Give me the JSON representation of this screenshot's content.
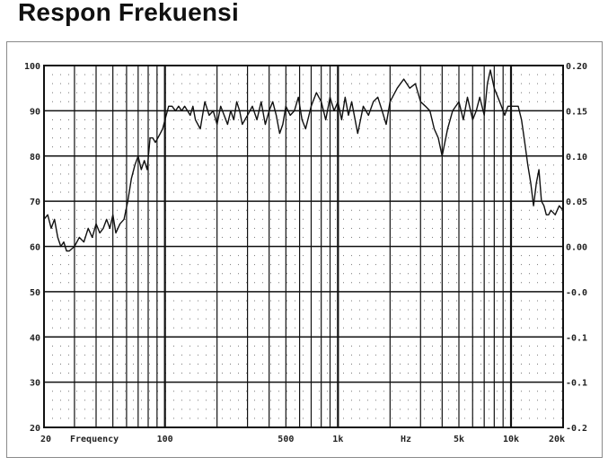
{
  "title": "Respon Frekuensi",
  "chart_data": {
    "type": "line",
    "title": "Respon Frekuensi",
    "xlabel": "Frequency",
    "xunit": "Hz",
    "xscale": "log",
    "xlim": [
      20,
      20000
    ],
    "ylim": [
      20,
      100
    ],
    "y2lim": [
      -0.2,
      0.2
    ],
    "grid": true,
    "x_tick_labels": [
      {
        "value": 20,
        "label": "20"
      },
      {
        "value": 100,
        "label": "100"
      },
      {
        "value": 500,
        "label": "500"
      },
      {
        "value": 1000,
        "label": "1k"
      },
      {
        "value": 5000,
        "label": "5k"
      },
      {
        "value": 10000,
        "label": "10k"
      },
      {
        "value": 20000,
        "label": "20k"
      }
    ],
    "y_tick_labels": [
      "100",
      "90",
      "80",
      "70",
      "60",
      "50",
      "40",
      "30",
      "20"
    ],
    "y2_tick_labels": [
      "0.20",
      "0.15",
      "0.10",
      "0.05",
      "0.00",
      "-0.0",
      "-0.1",
      "-0.1",
      "-0.2"
    ],
    "series": [
      {
        "x": [
          20,
          21,
          22,
          23,
          24,
          25,
          26,
          27,
          28,
          30,
          32,
          34,
          36,
          38,
          40,
          42,
          44,
          46,
          48,
          50,
          52,
          55,
          58,
          61,
          64,
          67,
          70,
          73,
          76,
          79,
          82,
          85,
          88,
          91,
          94,
          97,
          100,
          105,
          110,
          115,
          120,
          125,
          130,
          135,
          140,
          145,
          150,
          160,
          170,
          180,
          190,
          200,
          210,
          220,
          230,
          240,
          250,
          260,
          270,
          280,
          300,
          320,
          340,
          360,
          380,
          400,
          420,
          440,
          460,
          480,
          500,
          530,
          560,
          590,
          620,
          650,
          700,
          750,
          800,
          850,
          900,
          950,
          1000,
          1050,
          1100,
          1150,
          1200,
          1300,
          1400,
          1500,
          1600,
          1700,
          1800,
          1900,
          2000,
          2200,
          2400,
          2600,
          2800,
          3000,
          3200,
          3400,
          3600,
          3800,
          4000,
          4300,
          4600,
          5000,
          5300,
          5600,
          6000,
          6300,
          6600,
          7000,
          7300,
          7600,
          8000,
          8400,
          8800,
          9200,
          9600,
          10000,
          10500,
          11000,
          11500,
          12000,
          12500,
          13000,
          13500,
          14000,
          14500,
          15000,
          15500,
          16000,
          16500,
          17000,
          18000,
          19000,
          20000
        ],
        "values": [
          66,
          67,
          64,
          66,
          62,
          60,
          61,
          59,
          59,
          60,
          62,
          61,
          64,
          62,
          65,
          63,
          64,
          66,
          64,
          67,
          63,
          65,
          66,
          70,
          75,
          78,
          80,
          77,
          79,
          77,
          84,
          84,
          83,
          84,
          85,
          86,
          88,
          91,
          91,
          90,
          91,
          90,
          91,
          90,
          89,
          91,
          88,
          86,
          92,
          89,
          90,
          87,
          91,
          89,
          87,
          90,
          88,
          92,
          90,
          87,
          89,
          91,
          88,
          92,
          87,
          90,
          92,
          89,
          85,
          87,
          91,
          89,
          90,
          93,
          88,
          86,
          91,
          94,
          92,
          88,
          93,
          90,
          92,
          88,
          93,
          89,
          92,
          85,
          91,
          89,
          92,
          93,
          90,
          87,
          92,
          95,
          97,
          95,
          96,
          92,
          91,
          90,
          86,
          84,
          80,
          86,
          90,
          92,
          88,
          93,
          88,
          90,
          93,
          89,
          96,
          99,
          95,
          93,
          91,
          89,
          91,
          91,
          91,
          91,
          88,
          83,
          78,
          74,
          69,
          74,
          77,
          70,
          69,
          67,
          67,
          68,
          67,
          69,
          68
        ]
      }
    ]
  }
}
